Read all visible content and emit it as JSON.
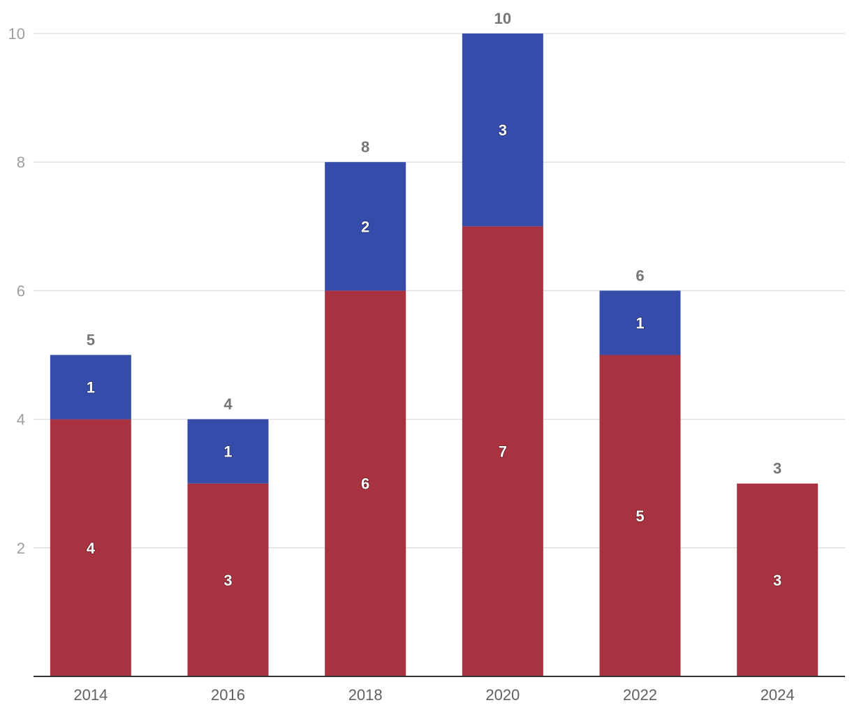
{
  "chart_data": {
    "type": "bar",
    "stacked": true,
    "categories": [
      "2014",
      "2016",
      "2018",
      "2020",
      "2022",
      "2024"
    ],
    "series": [
      {
        "values": [
          4,
          3,
          6,
          7,
          5,
          3
        ],
        "color": "#a83240"
      },
      {
        "values": [
          1,
          1,
          2,
          3,
          1,
          0
        ],
        "color": "#354caa"
      }
    ],
    "totals": [
      5,
      4,
      8,
      10,
      6,
      3
    ],
    "ylim": [
      0,
      10
    ],
    "yticks": [
      2,
      4,
      6,
      8,
      10
    ],
    "grid": true,
    "legend": "none",
    "title": "",
    "xlabel": "",
    "ylabel": ""
  }
}
